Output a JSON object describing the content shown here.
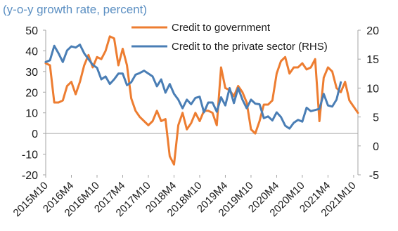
{
  "chart_data": {
    "type": "line",
    "title": "(y-o-y growth rate, percent)",
    "x_tick_labels": [
      "2015M10",
      "2016M4",
      "2016M10",
      "2017M4",
      "2017M10",
      "2018M4",
      "2018M10",
      "2019M4",
      "2019M10",
      "2020M4",
      "2020M10",
      "2021M4",
      "2021M10"
    ],
    "y_left": {
      "ylim": [
        -20,
        50
      ],
      "ticks": [
        -20,
        -10,
        0,
        10,
        20,
        30,
        40,
        50
      ]
    },
    "y_right": {
      "label": "RHS",
      "ylim": [
        -5,
        20
      ],
      "ticks": [
        -5,
        0,
        5,
        10,
        15,
        20
      ]
    },
    "x_start": "2015-10",
    "legend_position": "top-right",
    "series": [
      {
        "name": "Credit to government",
        "axis": "left",
        "color": "#ed7d31",
        "values": [
          34,
          33,
          15,
          15,
          16,
          23,
          25,
          19,
          25,
          33,
          38,
          32,
          37,
          36,
          40,
          47,
          46,
          33,
          41,
          33,
          17,
          11,
          8,
          6,
          4,
          6,
          11,
          6,
          7,
          -11,
          -15,
          4,
          10,
          2,
          5,
          10,
          6,
          11,
          11,
          10,
          4,
          32,
          22,
          21,
          18,
          23,
          20,
          15,
          2,
          0,
          6,
          14,
          14,
          16,
          29,
          35,
          37,
          29,
          32,
          32,
          34,
          31,
          32,
          36,
          6,
          27,
          32,
          30,
          22,
          20,
          25,
          16,
          13,
          10
        ]
      },
      {
        "name": "Credit to the private sector (RHS)",
        "axis": "right",
        "color": "#4a7eb5",
        "values": [
          14.5,
          14.8,
          17.3,
          16,
          14.5,
          16.5,
          17.2,
          17,
          17.5,
          16,
          15,
          14,
          13.5,
          11.5,
          12,
          10.7,
          11.5,
          12.5,
          12.5,
          10.5,
          11,
          12.3,
          12.6,
          13,
          12.5,
          12,
          10.3,
          11.5,
          9.2,
          10.7,
          9,
          8,
          6.5,
          8,
          7.2,
          8.3,
          8.5,
          5.8,
          7.5,
          7.5,
          5.9,
          8.4,
          7,
          10,
          7.4,
          10,
          8,
          6.5,
          8,
          7.3,
          7.2,
          4.8,
          5.1,
          4.4,
          5.8,
          5,
          3.5,
          3,
          4,
          4.5,
          4.2,
          6.6,
          6,
          6.2,
          6.4,
          9,
          7,
          6.8,
          8,
          11
        ]
      }
    ]
  }
}
